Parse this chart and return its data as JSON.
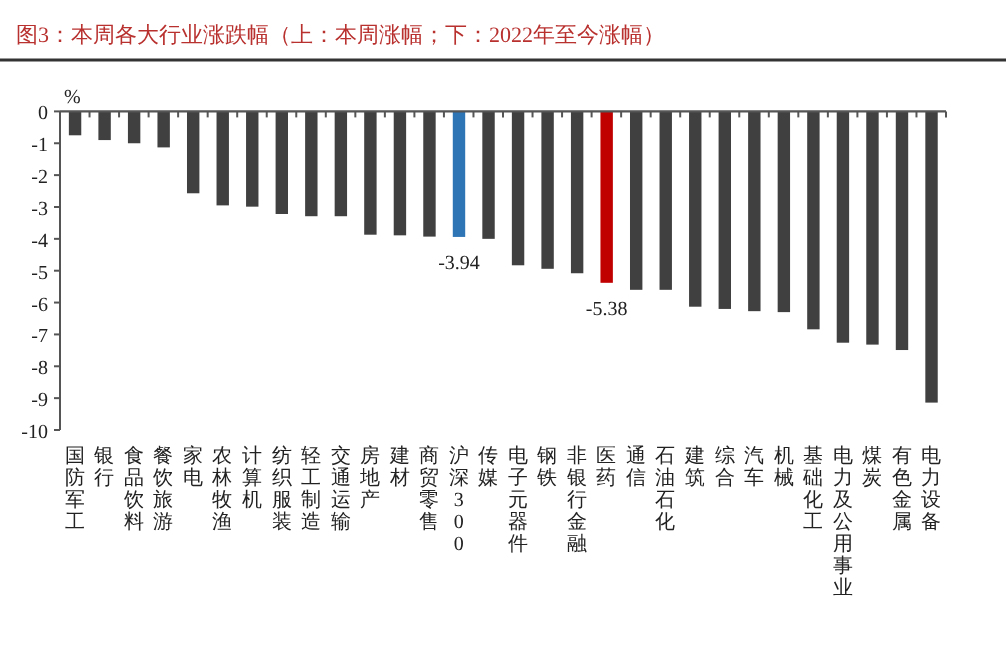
{
  "chart_data": {
    "type": "bar",
    "title": "图3：本周各大行业涨跌幅（上：本周涨幅；下：2022年至今涨幅）",
    "ylabel": "%",
    "categories": [
      "国防军工",
      "银行",
      "食品饮料",
      "餐饮旅游",
      "家电",
      "农林牧渔",
      "计算机",
      "纺织服装",
      "轻工制造",
      "交通运输",
      "房地产",
      "建材",
      "商贸零售",
      "沪深300",
      "传媒",
      "电子元器件",
      "钢铁",
      "非银行金融",
      "医药",
      "通信",
      "石油石化",
      "建筑",
      "综合",
      "汽车",
      "机械",
      "基础化工",
      "电力及公用事业",
      "煤炭",
      "有色金属",
      "电力设备"
    ],
    "values": [
      -0.75,
      -0.9,
      -1.0,
      -1.13,
      -2.57,
      -2.95,
      -2.99,
      -3.22,
      -3.29,
      -3.29,
      -3.87,
      -3.89,
      -3.93,
      -3.94,
      -4.0,
      -4.83,
      -4.94,
      -5.08,
      -5.38,
      -5.6,
      -5.6,
      -6.13,
      -6.2,
      -6.27,
      -6.3,
      -6.84,
      -7.26,
      -7.32,
      -7.49,
      -9.14
    ],
    "colors": [
      "#404040",
      "#404040",
      "#404040",
      "#404040",
      "#404040",
      "#404040",
      "#404040",
      "#404040",
      "#404040",
      "#404040",
      "#404040",
      "#404040",
      "#404040",
      "#2e75b6",
      "#404040",
      "#404040",
      "#404040",
      "#404040",
      "#c00000",
      "#404040",
      "#404040",
      "#404040",
      "#404040",
      "#404040",
      "#404040",
      "#404040",
      "#404040",
      "#404040",
      "#404040",
      "#404040"
    ],
    "value_labels": [
      null,
      null,
      null,
      null,
      null,
      null,
      null,
      null,
      null,
      null,
      null,
      null,
      null,
      "-3.94",
      null,
      null,
      null,
      null,
      "-5.38",
      null,
      null,
      null,
      null,
      null,
      null,
      null,
      null,
      null,
      null,
      null
    ],
    "ylim": [
      -10,
      0
    ],
    "yticks": [
      0,
      -1,
      -2,
      -3,
      -4,
      -5,
      -6,
      -7,
      -8,
      -9,
      -10
    ],
    "grid": false
  }
}
